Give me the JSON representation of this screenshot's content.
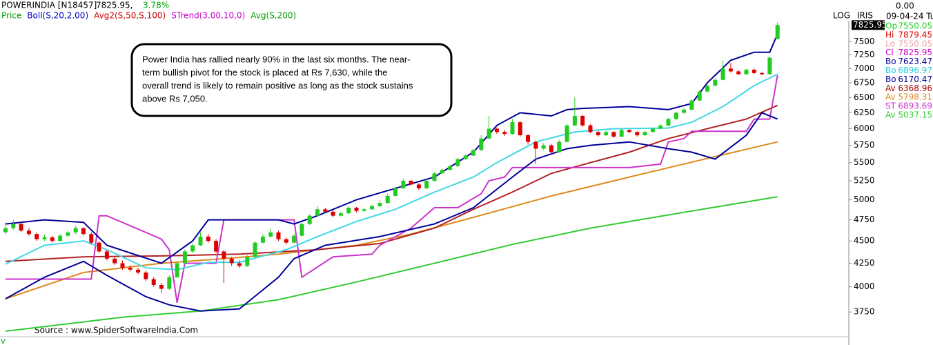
{
  "chart_data": {
    "type": "candlestick",
    "title": "POWERINDIA [N18457]",
    "price": "7825.95,",
    "change": "3.78%",
    "change_color": "#00a000",
    "legend": [
      {
        "text": "Price",
        "color": "#00a000"
      },
      {
        "text": "Boll(S,20,2.00)",
        "color": "#0000cc"
      },
      {
        "text": "Avg2(S,50,S,100)",
        "color": "#cc0000"
      },
      {
        "text": "STrend(3.00,10,0)",
        "color": "#cc00cc"
      },
      {
        "text": "Avg(S,200)",
        "color": "#00a000"
      }
    ],
    "scale_label": "LOG",
    "mode_label": "IRIS",
    "cursor_value": "0.00",
    "date": "09-04-24 Tu",
    "readout": [
      {
        "label": "Op",
        "value": "7550.05",
        "color": "#22cc22"
      },
      {
        "label": "Hi",
        "value": "7879.45",
        "color": "#dd0000"
      },
      {
        "label": "Lo",
        "value": "7550.05",
        "color": "#f0a0a0"
      },
      {
        "label": "Cl",
        "value": "7825.95",
        "color": "#cc00cc"
      },
      {
        "label": "Bo",
        "value": "7623.47",
        "color": "#000099"
      },
      {
        "label": "Bo",
        "value": "6896.97",
        "color": "#22ccdd"
      },
      {
        "label": "Bo",
        "value": "6170.47",
        "color": "#000099"
      },
      {
        "label": "Av",
        "value": "6368.96",
        "color": "#aa0000"
      },
      {
        "label": "Av",
        "value": "5798.31",
        "color": "#e08a1e"
      },
      {
        "label": "ST",
        "value": "6893.69",
        "color": "#cc33cc"
      },
      {
        "label": "Av",
        "value": "5037.15",
        "color": "#33cc33"
      }
    ],
    "annotation": [
      "Power India has rallied nearly 90% in the last six months. The near-",
      "term bullish pivot for the stock is placed at Rs 7,630, while the",
      "overall trend is likely to remain positive as long as the stock sustains",
      "above Rs 7,050."
    ],
    "source": "Source : www.SpiderSoftwareIndia.Com",
    "volume_label": "V",
    "log_scale": true,
    "ylim": [
      3520,
      7900
    ],
    "yticks": [
      3750,
      4000,
      4250,
      4500,
      4750,
      5000,
      5250,
      5500,
      5750,
      6000,
      6250,
      6500,
      6750,
      7000,
      7250,
      7500
    ],
    "up_color": "#22cc22",
    "down_color": "#dd0000",
    "ohlc": [
      [
        4600,
        4720,
        4580,
        4650
      ],
      [
        4650,
        4750,
        4630,
        4700
      ],
      [
        4700,
        4720,
        4600,
        4620
      ],
      [
        4620,
        4650,
        4560,
        4580
      ],
      [
        4580,
        4600,
        4500,
        4520
      ],
      [
        4520,
        4570,
        4500,
        4540
      ],
      [
        4540,
        4560,
        4480,
        4500
      ],
      [
        4500,
        4580,
        4490,
        4560
      ],
      [
        4560,
        4620,
        4540,
        4600
      ],
      [
        4600,
        4680,
        4580,
        4650
      ],
      [
        4650,
        4660,
        4560,
        4580
      ],
      [
        4580,
        4600,
        4460,
        4480
      ],
      [
        4480,
        4500,
        4360,
        4380
      ],
      [
        4380,
        4400,
        4280,
        4300
      ],
      [
        4300,
        4320,
        4230,
        4250
      ],
      [
        4250,
        4280,
        4180,
        4200
      ],
      [
        4200,
        4230,
        4160,
        4180
      ],
      [
        4180,
        4200,
        4130,
        4150
      ],
      [
        4150,
        4170,
        4060,
        4080
      ],
      [
        4080,
        4100,
        4000,
        4020
      ],
      [
        4020,
        4040,
        3940,
        3980
      ],
      [
        3980,
        4120,
        3970,
        4100
      ],
      [
        4100,
        4270,
        4090,
        4250
      ],
      [
        4250,
        4400,
        4240,
        4380
      ],
      [
        4380,
        4470,
        4360,
        4450
      ],
      [
        4450,
        4600,
        4440,
        4550
      ],
      [
        4550,
        4580,
        4480,
        4500
      ],
      [
        4500,
        4520,
        4360,
        4380
      ],
      [
        4380,
        4400,
        4040,
        4300
      ],
      [
        4300,
        4320,
        4220,
        4250
      ],
      [
        4250,
        4280,
        4200,
        4220
      ],
      [
        4220,
        4340,
        4210,
        4320
      ],
      [
        4320,
        4500,
        4310,
        4480
      ],
      [
        4480,
        4580,
        4470,
        4550
      ],
      [
        4550,
        4640,
        4540,
        4600
      ],
      [
        4600,
        4620,
        4500,
        4520
      ],
      [
        4520,
        4540,
        4460,
        4480
      ],
      [
        4480,
        4580,
        4470,
        4560
      ],
      [
        4560,
        4720,
        4550,
        4700
      ],
      [
        4700,
        4820,
        4690,
        4800
      ],
      [
        4800,
        4920,
        4790,
        4880
      ],
      [
        4880,
        4900,
        4830,
        4850
      ],
      [
        4850,
        4870,
        4780,
        4800
      ],
      [
        4800,
        4850,
        4790,
        4830
      ],
      [
        4830,
        4920,
        4820,
        4900
      ],
      [
        4900,
        4910,
        4840,
        4860
      ],
      [
        4860,
        4900,
        4850,
        4880
      ],
      [
        4880,
        4940,
        4870,
        4920
      ],
      [
        4920,
        4990,
        4910,
        4960
      ],
      [
        4960,
        5080,
        4950,
        5050
      ],
      [
        5050,
        5170,
        5040,
        5150
      ],
      [
        5150,
        5280,
        5140,
        5250
      ],
      [
        5250,
        5260,
        5180,
        5200
      ],
      [
        5200,
        5220,
        5130,
        5150
      ],
      [
        5150,
        5270,
        5140,
        5250
      ],
      [
        5250,
        5370,
        5240,
        5350
      ],
      [
        5350,
        5420,
        5340,
        5400
      ],
      [
        5400,
        5470,
        5390,
        5450
      ],
      [
        5450,
        5570,
        5440,
        5550
      ],
      [
        5550,
        5620,
        5540,
        5600
      ],
      [
        5600,
        5700,
        5590,
        5680
      ],
      [
        5680,
        5900,
        5670,
        5850
      ],
      [
        5850,
        6200,
        5840,
        6000
      ],
      [
        6000,
        6020,
        5920,
        5950
      ],
      [
        5950,
        5980,
        5890,
        5920
      ],
      [
        5920,
        6150,
        5910,
        6100
      ],
      [
        6100,
        6120,
        5880,
        5900
      ],
      [
        5900,
        5920,
        5760,
        5800
      ],
      [
        5800,
        5820,
        5480,
        5700
      ],
      [
        5700,
        5780,
        5680,
        5750
      ],
      [
        5750,
        5770,
        5620,
        5650
      ],
      [
        5650,
        5830,
        5640,
        5800
      ],
      [
        5800,
        6080,
        5790,
        6050
      ],
      [
        6050,
        6500,
        6040,
        6200
      ],
      [
        6200,
        6220,
        6030,
        6050
      ],
      [
        6050,
        6070,
        5930,
        5950
      ],
      [
        5950,
        5970,
        5880,
        5900
      ],
      [
        5900,
        5970,
        5890,
        5950
      ],
      [
        5950,
        5960,
        5860,
        5880
      ],
      [
        5880,
        6000,
        5870,
        5980
      ],
      [
        5980,
        5990,
        5930,
        5950
      ],
      [
        5950,
        5960,
        5880,
        5900
      ],
      [
        5900,
        5970,
        5890,
        5950
      ],
      [
        5950,
        6020,
        5940,
        6000
      ],
      [
        6000,
        6070,
        5990,
        6050
      ],
      [
        6050,
        6170,
        6040,
        6150
      ],
      [
        6150,
        6270,
        6140,
        6250
      ],
      [
        6250,
        6330,
        6240,
        6300
      ],
      [
        6300,
        6470,
        6290,
        6450
      ],
      [
        6450,
        6620,
        6440,
        6600
      ],
      [
        6600,
        6720,
        6590,
        6700
      ],
      [
        6700,
        6830,
        6690,
        6800
      ],
      [
        6800,
        7150,
        6790,
        7000
      ],
      [
        7000,
        7100,
        6930,
        6950
      ],
      [
        6950,
        6970,
        6880,
        6900
      ],
      [
        6900,
        7000,
        6890,
        6980
      ],
      [
        6980,
        7000,
        6900,
        6920
      ],
      [
        6920,
        6940,
        6880,
        6900
      ],
      [
        6900,
        7220,
        6890,
        7200
      ],
      [
        7550.05,
        7879.45,
        7550.05,
        7825.95
      ]
    ],
    "lines": [
      {
        "color": "#33cc33",
        "x": [
          0,
          15,
          25,
          35,
          45,
          55,
          65,
          75,
          85,
          99
        ],
        "values": [
          3570,
          3700,
          3760,
          3870,
          4050,
          4250,
          4460,
          4650,
          4810,
          5040
        ]
      },
      {
        "color": "#e08a1e",
        "x": [
          0,
          10,
          20,
          28,
          35,
          45,
          52,
          60,
          70,
          80,
          90,
          99
        ],
        "values": [
          3880,
          4150,
          4250,
          4300,
          4350,
          4450,
          4580,
          4780,
          5050,
          5300,
          5560,
          5800
        ]
      },
      {
        "color": "#b22222",
        "x": [
          0,
          10,
          20,
          30,
          40,
          48,
          55,
          60,
          65,
          70,
          75,
          80,
          85,
          90,
          95,
          99
        ],
        "values": [
          4270,
          4320,
          4330,
          4350,
          4400,
          4470,
          4650,
          4880,
          5100,
          5350,
          5500,
          5650,
          5850,
          6000,
          6150,
          6370
        ]
      },
      {
        "color": "#cc33cc",
        "x": [
          0,
          11,
          12,
          13,
          20,
          21,
          22,
          23,
          27,
          28,
          37,
          38,
          42,
          47,
          48,
          52,
          55,
          58,
          61,
          62,
          64,
          65,
          80,
          84,
          85,
          87,
          88,
          95,
          96,
          98,
          99
        ],
        "values": [
          4080,
          4080,
          4800,
          4800,
          4520,
          4400,
          3840,
          4250,
          4250,
          4750,
          4750,
          4100,
          4320,
          4350,
          4450,
          4650,
          4900,
          4900,
          5080,
          5250,
          5300,
          5430,
          5430,
          5480,
          5800,
          5850,
          5960,
          5960,
          6150,
          6150,
          6880
        ]
      },
      {
        "color": "#40d8e8",
        "x": [
          0,
          5,
          10,
          13,
          18,
          22,
          26,
          30,
          36,
          40,
          45,
          50,
          55,
          60,
          63,
          68,
          73,
          78,
          85,
          88,
          92,
          96,
          99
        ],
        "values": [
          4240,
          4450,
          4500,
          4400,
          4200,
          4180,
          4260,
          4260,
          4400,
          4550,
          4730,
          4880,
          5100,
          5300,
          5500,
          5800,
          5950,
          6000,
          6010,
          6100,
          6350,
          6700,
          6900
        ]
      },
      {
        "color": "#000099",
        "x": [
          0,
          5,
          10,
          13,
          20,
          24,
          26,
          35,
          37,
          40,
          45,
          50,
          55,
          60,
          63,
          66,
          70,
          72,
          74,
          80,
          85,
          88,
          90,
          93,
          96,
          98,
          99
        ],
        "values": [
          4700,
          4750,
          4720,
          4450,
          4250,
          4500,
          4750,
          4750,
          4700,
          4800,
          5000,
          5150,
          5300,
          5650,
          6050,
          6250,
          6200,
          6300,
          6320,
          6350,
          6300,
          6400,
          6750,
          7150,
          7300,
          7300,
          7650
        ]
      },
      {
        "color": "#000099",
        "x": [
          0,
          5,
          10,
          13,
          18,
          21,
          25,
          30,
          35,
          37,
          41,
          48,
          55,
          60,
          65,
          68,
          72,
          75,
          80,
          85,
          88,
          91,
          95,
          97,
          99
        ],
        "values": [
          3880,
          4100,
          4270,
          4120,
          3900,
          3820,
          3760,
          3780,
          4100,
          4300,
          4450,
          4550,
          4700,
          4900,
          5300,
          5550,
          5700,
          5750,
          5800,
          5700,
          5650,
          5550,
          5900,
          6250,
          6150
        ]
      }
    ]
  }
}
